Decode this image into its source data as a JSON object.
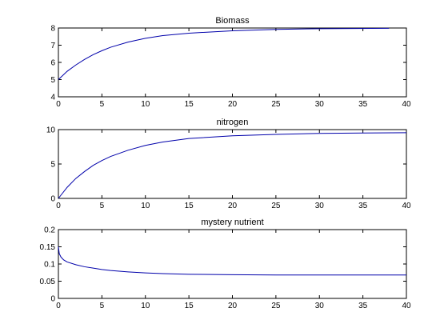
{
  "chart_data": [
    {
      "type": "line",
      "title": "Biomass",
      "xlabel": "",
      "ylabel": "",
      "xlim": [
        0,
        40
      ],
      "ylim": [
        4,
        8
      ],
      "xticks": [
        0,
        5,
        10,
        15,
        20,
        25,
        30,
        35,
        40
      ],
      "yticks": [
        4,
        5,
        6,
        7,
        8
      ],
      "grid": false,
      "series_color": "#0000aa",
      "series": [
        {
          "x": [
            0,
            1,
            2,
            3,
            4,
            5,
            6,
            8,
            10,
            12,
            15,
            20,
            25,
            30,
            38
          ],
          "values": [
            5.0,
            5.48,
            5.85,
            6.17,
            6.45,
            6.68,
            6.88,
            7.18,
            7.4,
            7.56,
            7.7,
            7.84,
            7.92,
            7.96,
            7.98
          ]
        }
      ]
    },
    {
      "type": "line",
      "title": "nitrogen",
      "xlabel": "",
      "ylabel": "",
      "xlim": [
        0,
        40
      ],
      "ylim": [
        0,
        10
      ],
      "xticks": [
        0,
        5,
        10,
        15,
        20,
        25,
        30,
        35,
        40
      ],
      "yticks": [
        0,
        5,
        10
      ],
      "grid": false,
      "series_color": "#0000aa",
      "series": [
        {
          "x": [
            0,
            1,
            2,
            3,
            4,
            5,
            6,
            8,
            10,
            12,
            15,
            20,
            25,
            30,
            35,
            40
          ],
          "values": [
            0,
            1.6,
            2.9,
            3.9,
            4.8,
            5.5,
            6.1,
            7.0,
            7.7,
            8.2,
            8.7,
            9.1,
            9.3,
            9.45,
            9.5,
            9.55
          ]
        }
      ]
    },
    {
      "type": "line",
      "title": "mystery nutrient",
      "xlabel": "",
      "ylabel": "",
      "xlim": [
        0,
        40
      ],
      "ylim": [
        0,
        0.2
      ],
      "xticks": [
        0,
        5,
        10,
        15,
        20,
        25,
        30,
        35,
        40
      ],
      "yticks": [
        0,
        0.05,
        0.1,
        0.15,
        0.2
      ],
      "grid": false,
      "series_color": "#0000aa",
      "series": [
        {
          "x": [
            0,
            0.1,
            0.3,
            0.6,
            1,
            2,
            3,
            4,
            5,
            6,
            8,
            10,
            12,
            15,
            20,
            25,
            30,
            35,
            40
          ],
          "values": [
            0.15,
            0.13,
            0.12,
            0.112,
            0.106,
            0.098,
            0.092,
            0.088,
            0.084,
            0.081,
            0.077,
            0.074,
            0.072,
            0.07,
            0.069,
            0.068,
            0.068,
            0.068,
            0.068
          ]
        }
      ]
    }
  ]
}
